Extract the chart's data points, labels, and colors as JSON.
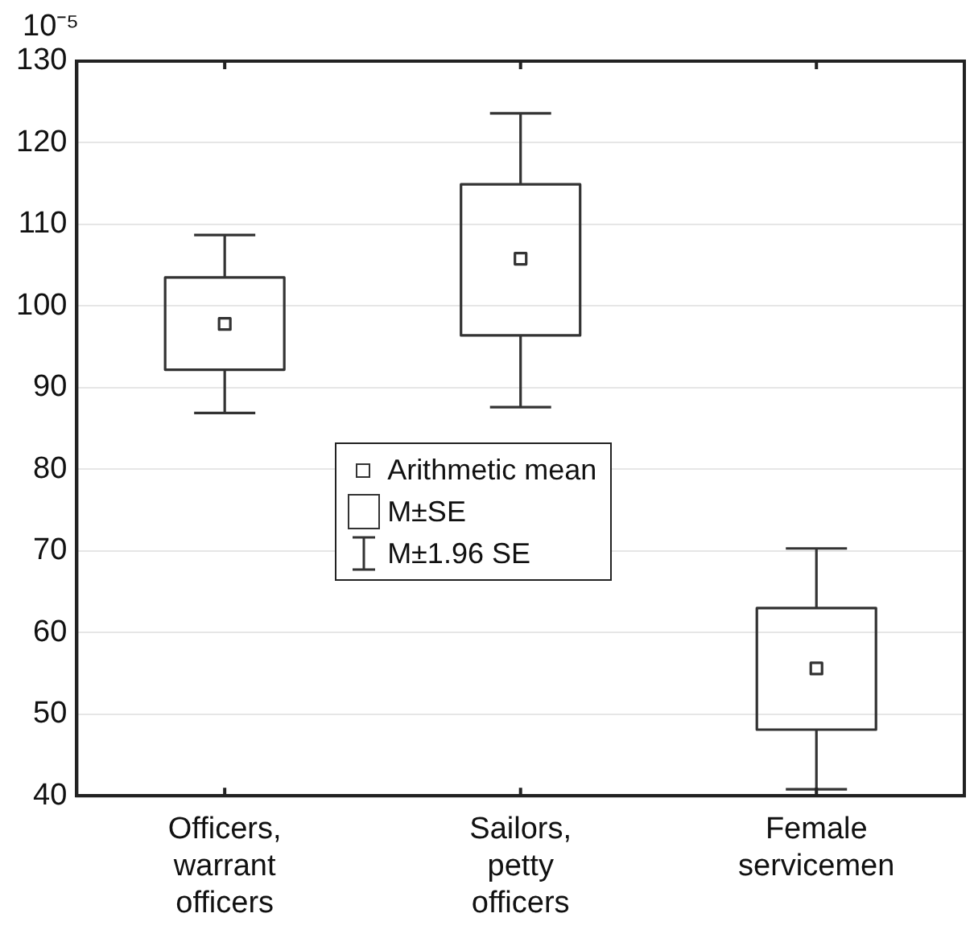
{
  "chart_data": {
    "type": "box",
    "ylabel": "10⁻⁵",
    "categories": [
      "Officers, warrant officers",
      "Sailors, petty officers",
      "Female servicemen"
    ],
    "boxes": [
      {
        "low": 86.9,
        "q1": 92.2,
        "q3": 103.5,
        "high": 108.7,
        "mean": 97.8
      },
      {
        "low": 87.6,
        "q1": 96.4,
        "q3": 114.9,
        "high": 123.6,
        "mean": 105.8
      },
      {
        "low": 40.8,
        "q1": 48.1,
        "q3": 63.0,
        "high": 70.3,
        "mean": 55.6
      }
    ],
    "color": "#333333",
    "ylim": [
      40,
      130
    ],
    "yticks": [
      40,
      50,
      60,
      70,
      80,
      90,
      100,
      110,
      120,
      130
    ],
    "grid": "y",
    "annotations": [
      "Arithmetic mean",
      "M±SE",
      "M±1.96 SE"
    ]
  }
}
